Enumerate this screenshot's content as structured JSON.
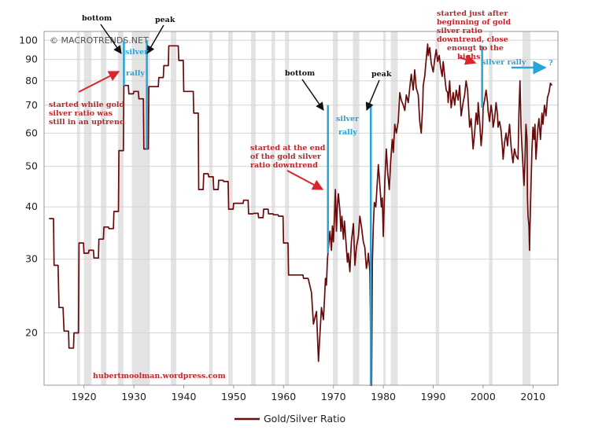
{
  "chart_data": {
    "type": "line",
    "title": "Gold/Silver Ratio",
    "watermark": "© MACROTRENDS.NET",
    "website": "hubertmoolman.wordpress.com",
    "xlim": [
      1912,
      2015
    ],
    "ylim": [
      15,
      105
    ],
    "yscale": "log",
    "x_ticks": [
      1920,
      1930,
      1940,
      1950,
      1960,
      1970,
      1980,
      1990,
      2000,
      2010
    ],
    "y_ticks": [
      20,
      30,
      40,
      50,
      60,
      70,
      80,
      90,
      100
    ],
    "legend": {
      "label": "Gold/Silver Ratio",
      "position": "bottom-center"
    },
    "colors": {
      "line": "#6b0a0a",
      "recession": "#e3e3e3",
      "rally": "#2aa3d8",
      "red_text": "#c0282d",
      "grid": "#d4d4d4"
    },
    "recessions": [
      [
        1918.6,
        1919.2
      ],
      [
        1920.0,
        1921.5
      ],
      [
        1923.4,
        1924.5
      ],
      [
        1926.8,
        1927.9
      ],
      [
        1929.6,
        1933.2
      ],
      [
        1937.4,
        1938.5
      ],
      [
        1945.1,
        1945.8
      ],
      [
        1948.9,
        1949.8
      ],
      [
        1953.5,
        1954.4
      ],
      [
        1957.6,
        1958.3
      ],
      [
        1960.3,
        1961.1
      ],
      [
        1969.9,
        1970.9
      ],
      [
        1973.9,
        1975.2
      ],
      [
        1980.0,
        1980.5
      ],
      [
        1981.5,
        1982.9
      ],
      [
        1990.5,
        1991.2
      ],
      [
        2001.2,
        2001.9
      ],
      [
        2007.9,
        2009.5
      ]
    ],
    "series": [
      {
        "name": "Gold/Silver Ratio",
        "values": [
          [
            1913.0,
            37.5
          ],
          [
            1913.9,
            37.5
          ],
          [
            1914.0,
            29
          ],
          [
            1914.8,
            29
          ],
          [
            1915.0,
            23
          ],
          [
            1915.8,
            23
          ],
          [
            1916.0,
            20.2
          ],
          [
            1916.9,
            20.2
          ],
          [
            1917.0,
            18.4
          ],
          [
            1917.9,
            18.4
          ],
          [
            1918.0,
            20
          ],
          [
            1918.9,
            20
          ],
          [
            1919.0,
            32.8
          ],
          [
            1919.9,
            32.8
          ],
          [
            1920.0,
            31
          ],
          [
            1920.9,
            31
          ],
          [
            1921.0,
            31.5
          ],
          [
            1921.9,
            31.5
          ],
          [
            1922.0,
            30.2
          ],
          [
            1922.9,
            30.2
          ],
          [
            1923.0,
            33.5
          ],
          [
            1923.9,
            33.5
          ],
          [
            1924.0,
            35.8
          ],
          [
            1924.9,
            35.8
          ],
          [
            1925.0,
            35.5
          ],
          [
            1925.9,
            35.5
          ],
          [
            1926.0,
            39
          ],
          [
            1926.9,
            39
          ],
          [
            1927.0,
            54.5
          ],
          [
            1927.9,
            54.5
          ],
          [
            1928.0,
            78
          ],
          [
            1928.9,
            78
          ],
          [
            1929.0,
            74.5
          ],
          [
            1929.9,
            74.5
          ],
          [
            1930.0,
            75.5
          ],
          [
            1930.9,
            75.5
          ],
          [
            1931.0,
            72.5
          ],
          [
            1931.9,
            72.5
          ],
          [
            1932.0,
            55
          ],
          [
            1932.9,
            55
          ],
          [
            1933.0,
            77.5
          ],
          [
            1933.9,
            77.5
          ],
          [
            1934.0,
            77.5
          ],
          [
            1934.9,
            77.5
          ],
          [
            1935.0,
            81.5
          ],
          [
            1935.9,
            81.5
          ],
          [
            1936.0,
            87
          ],
          [
            1936.9,
            87
          ],
          [
            1937.0,
            97
          ],
          [
            1938.9,
            97
          ],
          [
            1939.0,
            89.5
          ],
          [
            1939.9,
            89.5
          ],
          [
            1940.0,
            75.5
          ],
          [
            1941.9,
            75.5
          ],
          [
            1942.0,
            67
          ],
          [
            1942.9,
            67
          ],
          [
            1943.0,
            44
          ],
          [
            1943.9,
            44
          ],
          [
            1944.0,
            48
          ],
          [
            1944.9,
            48
          ],
          [
            1945.0,
            47.2
          ],
          [
            1945.9,
            47.2
          ],
          [
            1946.0,
            44
          ],
          [
            1946.9,
            44
          ],
          [
            1947.0,
            46.3
          ],
          [
            1947.9,
            46.3
          ],
          [
            1948.0,
            46
          ],
          [
            1948.9,
            46
          ],
          [
            1949.0,
            39.5
          ],
          [
            1949.9,
            39.5
          ],
          [
            1950.0,
            40.8
          ],
          [
            1951.9,
            40.8
          ],
          [
            1952.0,
            41.5
          ],
          [
            1952.9,
            41.5
          ],
          [
            1953.0,
            38.5
          ],
          [
            1953.9,
            38.5
          ],
          [
            1954.0,
            38.6
          ],
          [
            1954.9,
            38.6
          ],
          [
            1955.0,
            37.7
          ],
          [
            1955.9,
            37.7
          ],
          [
            1956.0,
            39.5
          ],
          [
            1956.9,
            39.5
          ],
          [
            1957.0,
            38.5
          ],
          [
            1957.9,
            38.5
          ],
          [
            1958.0,
            38.3
          ],
          [
            1958.9,
            38.3
          ],
          [
            1959.0,
            38
          ],
          [
            1959.9,
            38
          ],
          [
            1960.0,
            32.8
          ],
          [
            1960.9,
            32.8
          ],
          [
            1961.0,
            27.5
          ],
          [
            1963.9,
            27.5
          ],
          [
            1964.0,
            27
          ],
          [
            1964.9,
            27
          ],
          [
            1965.0,
            26.8
          ],
          [
            1965.6,
            25
          ],
          [
            1966.0,
            21
          ],
          [
            1966.6,
            22.5
          ],
          [
            1967.0,
            17.1
          ],
          [
            1967.2,
            19
          ],
          [
            1967.6,
            23
          ],
          [
            1968.0,
            21.5
          ],
          [
            1968.2,
            24
          ],
          [
            1968.4,
            27
          ],
          [
            1968.6,
            26
          ],
          [
            1968.8,
            30
          ],
          [
            1969.0,
            32
          ],
          [
            1969.3,
            35
          ],
          [
            1969.6,
            31.5
          ],
          [
            1969.8,
            36
          ],
          [
            1970.0,
            33
          ],
          [
            1970.2,
            38
          ],
          [
            1970.4,
            44
          ],
          [
            1970.6,
            35
          ],
          [
            1970.8,
            40.5
          ],
          [
            1971.0,
            43
          ],
          [
            1971.3,
            39
          ],
          [
            1971.5,
            35
          ],
          [
            1971.7,
            38
          ],
          [
            1972.0,
            33.5
          ],
          [
            1972.2,
            37
          ],
          [
            1972.5,
            33
          ],
          [
            1972.8,
            29.5
          ],
          [
            1973.0,
            31
          ],
          [
            1973.3,
            28
          ],
          [
            1973.6,
            33
          ],
          [
            1974.0,
            36.5
          ],
          [
            1974.3,
            29
          ],
          [
            1974.6,
            32
          ],
          [
            1975.0,
            34
          ],
          [
            1975.3,
            38
          ],
          [
            1975.6,
            36
          ],
          [
            1976.0,
            33
          ],
          [
            1976.3,
            32
          ],
          [
            1976.6,
            28.5
          ],
          [
            1976.9,
            30
          ],
          [
            1977.0,
            31
          ],
          [
            1977.3,
            28
          ],
          [
            1977.4,
            23
          ],
          [
            1977.5,
            14
          ],
          [
            1977.65,
            14
          ],
          [
            1977.8,
            29.5
          ],
          [
            1978.0,
            36
          ],
          [
            1978.2,
            41
          ],
          [
            1978.5,
            40
          ],
          [
            1978.8,
            46
          ],
          [
            1979.0,
            50.5
          ],
          [
            1979.3,
            45
          ],
          [
            1979.6,
            40
          ],
          [
            1979.8,
            42
          ],
          [
            1980.0,
            34
          ],
          [
            1980.3,
            46
          ],
          [
            1980.6,
            55
          ],
          [
            1980.9,
            48
          ],
          [
            1981.2,
            44
          ],
          [
            1981.5,
            52
          ],
          [
            1981.8,
            58
          ],
          [
            1982.0,
            54
          ],
          [
            1982.3,
            63
          ],
          [
            1982.6,
            60
          ],
          [
            1983.0,
            64
          ],
          [
            1983.3,
            75
          ],
          [
            1983.6,
            72
          ],
          [
            1984.0,
            70
          ],
          [
            1984.3,
            68
          ],
          [
            1984.6,
            74
          ],
          [
            1985.0,
            71
          ],
          [
            1985.3,
            77
          ],
          [
            1985.6,
            83
          ],
          [
            1986.0,
            76
          ],
          [
            1986.3,
            85
          ],
          [
            1986.6,
            77
          ],
          [
            1987.0,
            74
          ],
          [
            1987.3,
            64
          ],
          [
            1987.6,
            60
          ],
          [
            1987.9,
            70
          ],
          [
            1988.0,
            78
          ],
          [
            1988.3,
            82
          ],
          [
            1988.6,
            90
          ],
          [
            1988.9,
            98
          ],
          [
            1989.0,
            92
          ],
          [
            1989.3,
            96
          ],
          [
            1989.6,
            88
          ],
          [
            1990.0,
            84
          ],
          [
            1990.3,
            90
          ],
          [
            1990.6,
            95
          ],
          [
            1990.9,
            89
          ],
          [
            1991.2,
            92
          ],
          [
            1991.5,
            86
          ],
          [
            1991.8,
            82
          ],
          [
            1992.0,
            89
          ],
          [
            1992.3,
            82
          ],
          [
            1992.6,
            76
          ],
          [
            1992.9,
            75
          ],
          [
            1993.0,
            71
          ],
          [
            1993.3,
            80
          ],
          [
            1993.6,
            69
          ],
          [
            1994.0,
            75
          ],
          [
            1994.3,
            70
          ],
          [
            1994.6,
            76
          ],
          [
            1995.0,
            72
          ],
          [
            1995.3,
            78
          ],
          [
            1995.6,
            66
          ],
          [
            1996.0,
            71
          ],
          [
            1996.3,
            74
          ],
          [
            1996.6,
            80
          ],
          [
            1996.9,
            76
          ],
          [
            1997.0,
            72
          ],
          [
            1997.3,
            62
          ],
          [
            1997.6,
            65
          ],
          [
            1998.0,
            55
          ],
          [
            1998.3,
            60
          ],
          [
            1998.6,
            67
          ],
          [
            1998.9,
            63
          ],
          [
            1999.0,
            71
          ],
          [
            1999.3,
            64
          ],
          [
            1999.6,
            56
          ],
          [
            1999.9,
            62
          ],
          [
            2000.0,
            69
          ],
          [
            2000.3,
            72
          ],
          [
            2000.6,
            76
          ],
          [
            2000.9,
            71
          ],
          [
            2001.0,
            68
          ],
          [
            2001.3,
            64
          ],
          [
            2001.6,
            70
          ],
          [
            2001.9,
            66
          ],
          [
            2002.0,
            62
          ],
          [
            2002.3,
            65
          ],
          [
            2002.6,
            71
          ],
          [
            2002.9,
            66
          ],
          [
            2003.0,
            62
          ],
          [
            2003.3,
            64
          ],
          [
            2003.6,
            61
          ],
          [
            2003.9,
            55
          ],
          [
            2004.0,
            52
          ],
          [
            2004.3,
            57
          ],
          [
            2004.6,
            60
          ],
          [
            2004.9,
            56
          ],
          [
            2005.0,
            58
          ],
          [
            2005.3,
            63
          ],
          [
            2005.6,
            56
          ],
          [
            2005.9,
            52
          ],
          [
            2006.0,
            51
          ],
          [
            2006.3,
            55
          ],
          [
            2006.6,
            53
          ],
          [
            2007.0,
            52
          ],
          [
            2007.2,
            68
          ],
          [
            2007.4,
            80
          ],
          [
            2007.6,
            62
          ],
          [
            2007.8,
            55
          ],
          [
            2008.0,
            50
          ],
          [
            2008.2,
            45
          ],
          [
            2008.4,
            52
          ],
          [
            2008.6,
            63
          ],
          [
            2008.8,
            58
          ],
          [
            2008.9,
            42
          ],
          [
            2009.0,
            38
          ],
          [
            2009.2,
            36
          ],
          [
            2009.3,
            31.5
          ],
          [
            2009.4,
            36
          ],
          [
            2009.6,
            45
          ],
          [
            2009.8,
            55
          ],
          [
            2010.0,
            62
          ],
          [
            2010.2,
            58
          ],
          [
            2010.4,
            63
          ],
          [
            2010.6,
            52
          ],
          [
            2010.8,
            57
          ],
          [
            2011.0,
            62
          ],
          [
            2011.2,
            65
          ],
          [
            2011.5,
            58
          ],
          [
            2011.8,
            67
          ],
          [
            2012.0,
            63
          ],
          [
            2012.3,
            70
          ],
          [
            2012.6,
            66
          ],
          [
            2012.9,
            73
          ],
          [
            2013.2,
            75
          ],
          [
            2013.5,
            79
          ],
          [
            2013.8,
            78
          ]
        ]
      }
    ],
    "rallies": [
      {
        "start": 1928.0,
        "end": 1932.6,
        "top": 100,
        "peak_bottom": 55
      },
      {
        "start": 1968.9,
        "end": 1977.5,
        "top": 70,
        "peak_bottom": 15
      }
    ],
    "rally_2000_line": {
      "x": 1999.8,
      "top": 97,
      "bottom": 69
    },
    "annotations": {
      "bottom_1": "bottom",
      "peak_1": "peak",
      "silver_1": "silver",
      "rally_1": "rally",
      "red_1a": "started while gold",
      "red_1b": "silver ratio was",
      "red_1c": "still in an uptrend",
      "bottom_2": "bottom",
      "peak_2": "peak",
      "silver_2": "silver",
      "rally_2": "rally",
      "red_2a": "started at the end",
      "red_2b": "of the gold silver",
      "red_2c": "ratio downtrend",
      "red_3a": "started just after",
      "red_3b": "beginning of gold",
      "red_3c": "silver ratio",
      "red_3d": "downtrend, close",
      "red_3e": "enougt to the",
      "red_3f": "highs",
      "silver_rally_3": "silver rally",
      "question": "?"
    }
  }
}
